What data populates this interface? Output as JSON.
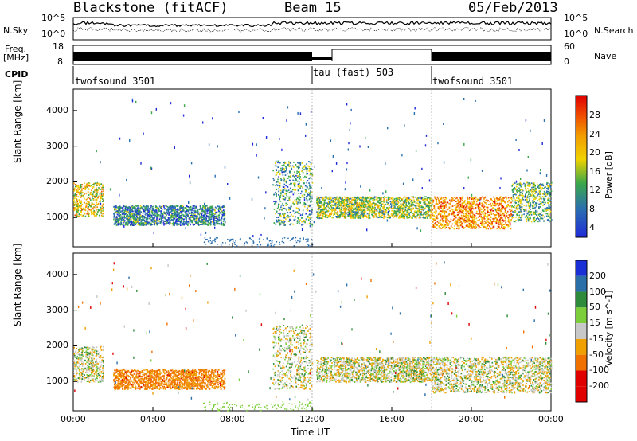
{
  "header": {
    "title": "Blackstone (fitACF)",
    "beam": "Beam 15",
    "date": "05/Feb/2013"
  },
  "aux": {
    "nsky_label": "N.Sky",
    "nsearch_label": "N.Search",
    "freq_label_1": "Freq.",
    "freq_label_2": "[MHz]",
    "nave_label": "Nave",
    "cpid_label": "CPID",
    "noise_ticks": [
      "10^5",
      "10^0"
    ],
    "noise_ticks_right": [
      "10^5",
      "10^0"
    ],
    "freq_ticks": [
      "18",
      "8"
    ],
    "nave_ticks": [
      "60",
      "0"
    ],
    "cpid_segments": [
      {
        "start": "00:00",
        "end": "12:00",
        "label": "twofsound 3501"
      },
      {
        "start": "12:00",
        "end": "18:00",
        "label": "tau (fast) 503"
      },
      {
        "start": "18:00",
        "end": "24:00",
        "label": "twofsound 3501"
      }
    ]
  },
  "axes": {
    "ylabel": "Slant Range [km]",
    "xlabel": "Time UT",
    "xticks": [
      "00:00",
      "04:00",
      "08:00",
      "12:00",
      "16:00",
      "20:00",
      "00:00"
    ],
    "yticks": [
      "4000",
      "3000",
      "2000",
      "1000"
    ]
  },
  "power_bar": {
    "label": "Power [dB]",
    "ticks": [
      "28",
      "24",
      "20",
      "16",
      "12",
      "8",
      "4"
    ]
  },
  "velocity_bar": {
    "label": "Velocity [m s^-1]",
    "ticks": [
      "200",
      "100",
      "50",
      "15",
      "-15",
      "-50",
      "-100",
      "-200"
    ]
  },
  "chart_data": [
    {
      "type": "heatmap",
      "title": "Power",
      "xlabel": "Time UT",
      "ylabel": "Slant Range [km]",
      "xlim_hours": [
        0,
        24
      ],
      "ylim_km": [
        180,
        4600
      ],
      "colorbar": {
        "label": "Power [dB]",
        "range": [
          0,
          30
        ]
      },
      "regions": [
        {
          "t0": 0.0,
          "t1": 1.5,
          "r0": 1050,
          "r1": 2000,
          "value": 20
        },
        {
          "t0": 2.0,
          "t1": 7.6,
          "r0": 800,
          "r1": 1350,
          "value": 10
        },
        {
          "t0": 10.0,
          "t1": 12.0,
          "r0": 800,
          "r1": 2600,
          "value": 12
        },
        {
          "t0": 12.2,
          "t1": 18.0,
          "r0": 1000,
          "r1": 1600,
          "value": 16
        },
        {
          "t0": 18.0,
          "t1": 22.0,
          "r0": 700,
          "r1": 1600,
          "value": 24
        },
        {
          "t0": 22.0,
          "t1": 24.0,
          "r0": 900,
          "r1": 2000,
          "value": 14
        }
      ]
    },
    {
      "type": "heatmap",
      "title": "Velocity",
      "xlabel": "Time UT",
      "ylabel": "Slant Range [km]",
      "xlim_hours": [
        0,
        24
      ],
      "ylim_km": [
        180,
        4600
      ],
      "colorbar": {
        "label": "Velocity [m s^-1]",
        "range": [
          -200,
          200
        ]
      },
      "regions": [
        {
          "t0": 0.0,
          "t1": 1.5,
          "r0": 1000,
          "r1": 2000,
          "value": 0
        },
        {
          "t0": 2.0,
          "t1": 7.6,
          "r0": 800,
          "r1": 1350,
          "value": -60
        },
        {
          "t0": 10.0,
          "t1": 12.0,
          "r0": 800,
          "r1": 2600,
          "value": 0
        },
        {
          "t0": 12.2,
          "t1": 18.0,
          "r0": 1000,
          "r1": 1700,
          "value": 0
        },
        {
          "t0": 18.0,
          "t1": 24.0,
          "r0": 700,
          "r1": 1700,
          "value": 0
        }
      ]
    }
  ]
}
